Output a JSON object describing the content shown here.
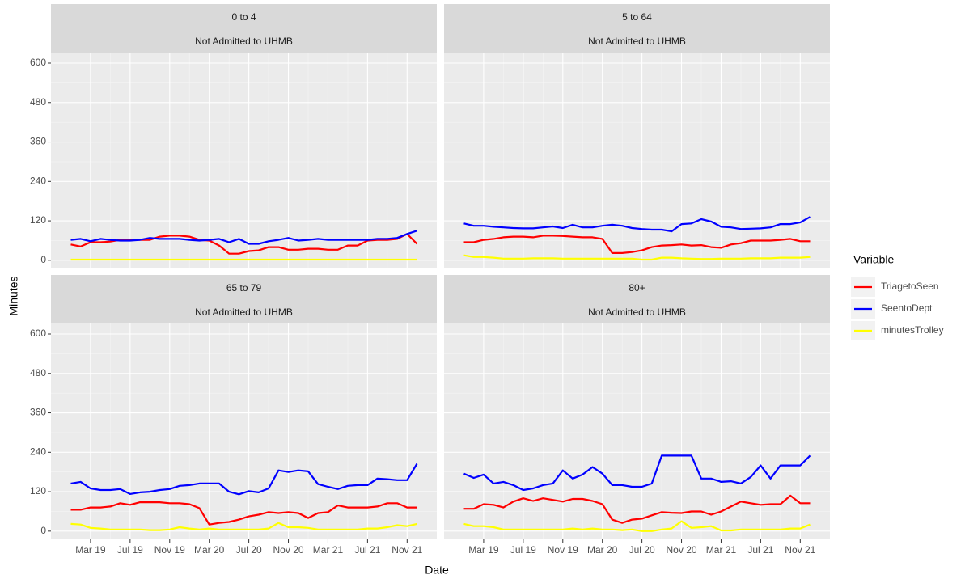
{
  "shared": {
    "x_label": "Date",
    "y_label": "Minutes",
    "legend_title": "Variable"
  },
  "chart_data": [
    {
      "type": "line",
      "facet": "0 to 4",
      "subtitle": "Not Admitted to UHMB",
      "x": [
        "2019-01",
        "2019-02",
        "2019-03",
        "2019-04",
        "2019-05",
        "2019-06",
        "2019-07",
        "2019-08",
        "2019-09",
        "2019-10",
        "2019-11",
        "2019-12",
        "2020-01",
        "2020-02",
        "2020-03",
        "2020-04",
        "2020-05",
        "2020-06",
        "2020-07",
        "2020-08",
        "2020-09",
        "2020-10",
        "2020-11",
        "2020-12",
        "2021-01",
        "2021-02",
        "2021-03",
        "2021-04",
        "2021-05",
        "2021-06",
        "2021-07",
        "2021-08",
        "2021-09",
        "2021-10",
        "2021-11",
        "2021-12"
      ],
      "xlim": [
        "2018-11",
        "2022-02"
      ],
      "xticks": [
        {
          "value": "2019-03",
          "label": "Mar 19"
        },
        {
          "value": "2019-07",
          "label": "Jul 19"
        },
        {
          "value": "2019-11",
          "label": "Nov 19"
        },
        {
          "value": "2020-03",
          "label": "Mar 20"
        },
        {
          "value": "2020-07",
          "label": "Jul 20"
        },
        {
          "value": "2020-11",
          "label": "Nov 20"
        },
        {
          "value": "2021-03",
          "label": "Mar 21"
        },
        {
          "value": "2021-07",
          "label": "Jul 21"
        },
        {
          "value": "2021-11",
          "label": "Nov 21"
        }
      ],
      "ylim": [
        -25,
        632
      ],
      "yticks": [
        0,
        120,
        240,
        360,
        480,
        600
      ],
      "grid": true,
      "series": [
        {
          "name": "TriagetoSeen",
          "color": "#ff0000",
          "values": [
            48,
            42,
            55,
            55,
            57,
            62,
            62,
            62,
            62,
            72,
            75,
            75,
            72,
            62,
            60,
            45,
            20,
            20,
            28,
            30,
            40,
            40,
            32,
            32,
            35,
            35,
            32,
            32,
            45,
            45,
            60,
            62,
            62,
            65,
            80,
            50
          ]
        },
        {
          "name": "SeentoDept",
          "color": "#0000ff",
          "values": [
            62,
            65,
            58,
            65,
            62,
            60,
            60,
            62,
            68,
            65,
            65,
            65,
            62,
            60,
            62,
            65,
            55,
            65,
            50,
            50,
            58,
            62,
            68,
            60,
            62,
            65,
            62,
            62,
            62,
            62,
            62,
            65,
            65,
            68,
            80,
            90
          ]
        },
        {
          "name": "minutesTrolley",
          "color": "#ffff00",
          "values": [
            2,
            2,
            2,
            2,
            2,
            2,
            2,
            2,
            2,
            2,
            2,
            2,
            2,
            2,
            2,
            2,
            2,
            2,
            2,
            2,
            2,
            2,
            2,
            2,
            2,
            2,
            2,
            2,
            2,
            2,
            2,
            2,
            2,
            2,
            2,
            2
          ]
        }
      ]
    },
    {
      "type": "line",
      "facet": "5 to 64",
      "subtitle": "Not Admitted to UHMB",
      "x": [
        "2019-01",
        "2019-02",
        "2019-03",
        "2019-04",
        "2019-05",
        "2019-06",
        "2019-07",
        "2019-08",
        "2019-09",
        "2019-10",
        "2019-11",
        "2019-12",
        "2020-01",
        "2020-02",
        "2020-03",
        "2020-04",
        "2020-05",
        "2020-06",
        "2020-07",
        "2020-08",
        "2020-09",
        "2020-10",
        "2020-11",
        "2020-12",
        "2021-01",
        "2021-02",
        "2021-03",
        "2021-04",
        "2021-05",
        "2021-06",
        "2021-07",
        "2021-08",
        "2021-09",
        "2021-10",
        "2021-11",
        "2021-12"
      ],
      "xlim": [
        "2018-11",
        "2022-02"
      ],
      "xticks": [
        {
          "value": "2019-03",
          "label": "Mar 19"
        },
        {
          "value": "2019-07",
          "label": "Jul 19"
        },
        {
          "value": "2019-11",
          "label": "Nov 19"
        },
        {
          "value": "2020-03",
          "label": "Mar 20"
        },
        {
          "value": "2020-07",
          "label": "Jul 20"
        },
        {
          "value": "2020-11",
          "label": "Nov 20"
        },
        {
          "value": "2021-03",
          "label": "Mar 21"
        },
        {
          "value": "2021-07",
          "label": "Jul 21"
        },
        {
          "value": "2021-11",
          "label": "Nov 21"
        }
      ],
      "ylim": [
        -25,
        632
      ],
      "yticks": [
        0,
        120,
        240,
        360,
        480,
        600
      ],
      "grid": true,
      "series": [
        {
          "name": "TriagetoSeen",
          "color": "#ff0000",
          "values": [
            55,
            55,
            62,
            65,
            70,
            72,
            72,
            70,
            75,
            75,
            74,
            72,
            70,
            70,
            65,
            22,
            22,
            25,
            30,
            40,
            45,
            46,
            48,
            45,
            46,
            40,
            38,
            48,
            52,
            60,
            60,
            60,
            62,
            65,
            58,
            58
          ]
        },
        {
          "name": "SeentoDept",
          "color": "#0000ff",
          "values": [
            112,
            105,
            105,
            102,
            100,
            98,
            97,
            97,
            100,
            103,
            98,
            108,
            100,
            100,
            105,
            108,
            105,
            98,
            95,
            93,
            93,
            88,
            110,
            112,
            125,
            118,
            102,
            100,
            95,
            96,
            97,
            100,
            110,
            110,
            115,
            132
          ]
        },
        {
          "name": "minutesTrolley",
          "color": "#ffff00",
          "values": [
            15,
            10,
            10,
            8,
            5,
            5,
            5,
            6,
            6,
            6,
            5,
            5,
            5,
            5,
            5,
            5,
            5,
            5,
            2,
            2,
            8,
            8,
            6,
            5,
            4,
            4,
            5,
            5,
            5,
            6,
            6,
            6,
            8,
            8,
            8,
            10
          ]
        }
      ]
    },
    {
      "type": "line",
      "facet": "65 to 79",
      "subtitle": "Not Admitted to UHMB",
      "x": [
        "2019-01",
        "2019-02",
        "2019-03",
        "2019-04",
        "2019-05",
        "2019-06",
        "2019-07",
        "2019-08",
        "2019-09",
        "2019-10",
        "2019-11",
        "2019-12",
        "2020-01",
        "2020-02",
        "2020-03",
        "2020-04",
        "2020-05",
        "2020-06",
        "2020-07",
        "2020-08",
        "2020-09",
        "2020-10",
        "2020-11",
        "2020-12",
        "2021-01",
        "2021-02",
        "2021-03",
        "2021-04",
        "2021-05",
        "2021-06",
        "2021-07",
        "2021-08",
        "2021-09",
        "2021-10",
        "2021-11",
        "2021-12"
      ],
      "xlim": [
        "2018-11",
        "2022-02"
      ],
      "xticks": [
        {
          "value": "2019-03",
          "label": "Mar 19"
        },
        {
          "value": "2019-07",
          "label": "Jul 19"
        },
        {
          "value": "2019-11",
          "label": "Nov 19"
        },
        {
          "value": "2020-03",
          "label": "Mar 20"
        },
        {
          "value": "2020-07",
          "label": "Jul 20"
        },
        {
          "value": "2020-11",
          "label": "Nov 20"
        },
        {
          "value": "2021-03",
          "label": "Mar 21"
        },
        {
          "value": "2021-07",
          "label": "Jul 21"
        },
        {
          "value": "2021-11",
          "label": "Nov 21"
        }
      ],
      "ylim": [
        -25,
        632
      ],
      "yticks": [
        0,
        120,
        240,
        360,
        480,
        600
      ],
      "grid": true,
      "series": [
        {
          "name": "TriagetoSeen",
          "color": "#ff0000",
          "values": [
            65,
            65,
            72,
            72,
            75,
            85,
            80,
            88,
            88,
            88,
            85,
            85,
            82,
            70,
            20,
            25,
            28,
            35,
            45,
            50,
            58,
            55,
            58,
            55,
            40,
            55,
            58,
            78,
            72,
            72,
            72,
            75,
            85,
            85,
            72,
            72
          ]
        },
        {
          "name": "SeentoDept",
          "color": "#0000ff",
          "values": [
            145,
            150,
            130,
            125,
            125,
            128,
            113,
            118,
            120,
            125,
            128,
            138,
            140,
            145,
            145,
            145,
            120,
            112,
            122,
            118,
            130,
            185,
            180,
            185,
            182,
            143,
            135,
            128,
            138,
            140,
            140,
            160,
            158,
            155,
            155,
            205
          ]
        },
        {
          "name": "minutesTrolley",
          "color": "#ffff00",
          "values": [
            22,
            20,
            10,
            8,
            5,
            5,
            5,
            5,
            3,
            3,
            5,
            12,
            8,
            5,
            8,
            5,
            5,
            5,
            5,
            5,
            8,
            25,
            12,
            12,
            10,
            5,
            5,
            5,
            5,
            5,
            8,
            8,
            12,
            18,
            15,
            22
          ]
        }
      ]
    },
    {
      "type": "line",
      "facet": "80+",
      "subtitle": "Not Admitted to UHMB",
      "x": [
        "2019-01",
        "2019-02",
        "2019-03",
        "2019-04",
        "2019-05",
        "2019-06",
        "2019-07",
        "2019-08",
        "2019-09",
        "2019-10",
        "2019-11",
        "2019-12",
        "2020-01",
        "2020-02",
        "2020-03",
        "2020-04",
        "2020-05",
        "2020-06",
        "2020-07",
        "2020-08",
        "2020-09",
        "2020-10",
        "2020-11",
        "2020-12",
        "2021-01",
        "2021-02",
        "2021-03",
        "2021-04",
        "2021-05",
        "2021-06",
        "2021-07",
        "2021-08",
        "2021-09",
        "2021-10",
        "2021-11",
        "2021-12"
      ],
      "xlim": [
        "2018-11",
        "2022-02"
      ],
      "xticks": [
        {
          "value": "2019-03",
          "label": "Mar 19"
        },
        {
          "value": "2019-07",
          "label": "Jul 19"
        },
        {
          "value": "2019-11",
          "label": "Nov 19"
        },
        {
          "value": "2020-03",
          "label": "Mar 20"
        },
        {
          "value": "2020-07",
          "label": "Jul 20"
        },
        {
          "value": "2020-11",
          "label": "Nov 20"
        },
        {
          "value": "2021-03",
          "label": "Mar 21"
        },
        {
          "value": "2021-07",
          "label": "Jul 21"
        },
        {
          "value": "2021-11",
          "label": "Nov 21"
        }
      ],
      "ylim": [
        -25,
        632
      ],
      "yticks": [
        0,
        120,
        240,
        360,
        480,
        600
      ],
      "grid": true,
      "series": [
        {
          "name": "TriagetoSeen",
          "color": "#ff0000",
          "values": [
            68,
            68,
            82,
            80,
            72,
            90,
            100,
            92,
            100,
            95,
            90,
            98,
            98,
            92,
            82,
            35,
            25,
            35,
            38,
            48,
            58,
            56,
            55,
            60,
            60,
            50,
            60,
            75,
            90,
            85,
            80,
            82,
            82,
            108,
            85,
            85
          ]
        },
        {
          "name": "SeentoDept",
          "color": "#0000ff",
          "values": [
            175,
            162,
            172,
            145,
            150,
            140,
            125,
            130,
            140,
            145,
            185,
            160,
            172,
            195,
            175,
            140,
            140,
            135,
            135,
            145,
            230,
            230,
            230,
            230,
            160,
            160,
            150,
            152,
            145,
            165,
            200,
            160,
            200,
            200,
            200,
            230
          ]
        },
        {
          "name": "minutesTrolley",
          "color": "#ffff00",
          "values": [
            22,
            15,
            15,
            12,
            5,
            5,
            5,
            5,
            5,
            5,
            5,
            8,
            5,
            8,
            5,
            5,
            3,
            5,
            0,
            0,
            5,
            8,
            30,
            10,
            12,
            15,
            2,
            2,
            5,
            5,
            5,
            5,
            5,
            8,
            8,
            20
          ]
        }
      ]
    }
  ]
}
